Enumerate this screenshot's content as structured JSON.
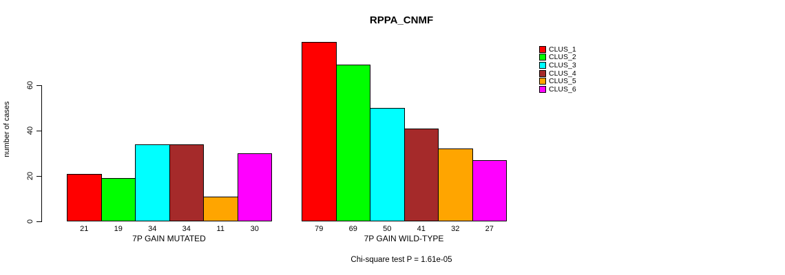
{
  "chart_data": {
    "type": "bar",
    "title": "RPPA_CNMF",
    "ylabel": "number of cases",
    "yticks": [
      0,
      20,
      40,
      60
    ],
    "ylim": [
      0,
      79
    ],
    "grid": false,
    "legend_position": "right",
    "categories": [
      "CLUS_1",
      "CLUS_2",
      "CLUS_3",
      "CLUS_4",
      "CLUS_5",
      "CLUS_6"
    ],
    "series_labels": [
      "CLUS_1",
      "CLUS_2",
      "CLUS_3",
      "CLUS_4",
      "CLUS_5",
      "CLUS_6"
    ],
    "series_colors": [
      "#FF0000",
      "#00FF00",
      "#00FFFF",
      "#A52A2A",
      "#FFA500",
      "#FF00FF"
    ],
    "groups": [
      {
        "label": "7P GAIN MUTATED",
        "values": [
          21,
          19,
          34,
          34,
          11,
          30
        ]
      },
      {
        "label": "7P GAIN WILD-TYPE",
        "values": [
          79,
          69,
          50,
          41,
          32,
          27
        ]
      }
    ],
    "annotation": "Chi-square test P = 1.61e-05"
  }
}
